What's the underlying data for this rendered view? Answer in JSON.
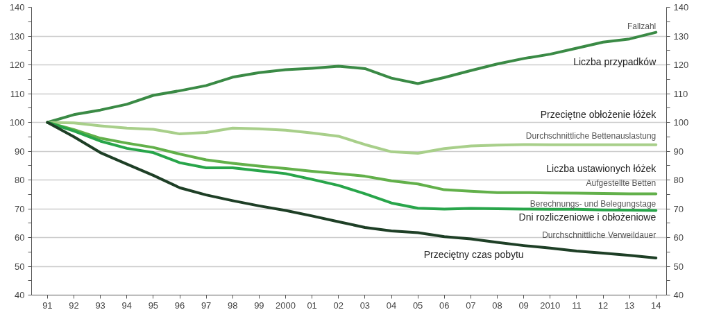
{
  "chart_data": {
    "type": "line",
    "categories": [
      "91",
      "92",
      "93",
      "94",
      "95",
      "96",
      "97",
      "98",
      "99",
      "2000",
      "01",
      "02",
      "03",
      "04",
      "05",
      "06",
      "07",
      "08",
      "09",
      "2010",
      "11",
      "12",
      "13",
      "14"
    ],
    "series": [
      {
        "name": "Fallzahl",
        "color": "#3a8a45",
        "values": [
          100,
          102.7,
          104.3,
          106.3,
          109.4,
          111,
          112.8,
          115.7,
          117.3,
          118.3,
          118.8,
          119.5,
          118.7,
          115.4,
          113.5,
          115.6,
          118,
          120.3,
          122.2,
          123.7,
          125.8,
          127.9,
          129,
          131.3
        ]
      },
      {
        "name": "Durchschnittliche Bettenauslastung",
        "color": "#a8cf8a",
        "values": [
          100,
          99.8,
          98.8,
          98,
          97.6,
          96,
          96.5,
          98,
          97.8,
          97.3,
          96.3,
          95.2,
          92.3,
          89.8,
          89.3,
          90.9,
          91.8,
          92.1,
          92.3,
          92.2,
          92.2,
          92.2,
          92.2,
          92.2
        ]
      },
      {
        "name": "Aufgestellte Betten",
        "color": "#62b04a",
        "values": [
          100,
          97.5,
          94.5,
          92.8,
          91.3,
          89,
          87,
          85.8,
          84.8,
          84,
          83,
          82.2,
          81.3,
          79.7,
          78.6,
          76.6,
          76.1,
          75.6,
          75.6,
          75.5,
          75.4,
          75.3,
          75.2,
          75.2
        ]
      },
      {
        "name": "Berechnungs- und Belegungstage",
        "color": "#28a54a",
        "values": [
          100,
          97,
          93.5,
          91,
          89.5,
          86,
          84.2,
          84.2,
          83.2,
          82.2,
          80.2,
          78.1,
          75.2,
          72,
          70.2,
          69.9,
          70.1,
          70,
          69.9,
          69.8,
          69.8,
          69.6,
          69.5,
          69.4
        ]
      },
      {
        "name": "Durchschnittliche Verweildauer",
        "color": "#1e3f26",
        "values": [
          100,
          95,
          89.5,
          85.5,
          81.6,
          77.3,
          74.8,
          72.8,
          71,
          69.4,
          67.5,
          65.5,
          63.5,
          62.3,
          61.7,
          60.3,
          59.5,
          58.3,
          57.2,
          56.3,
          55.3,
          54.6,
          53.8,
          52.9
        ]
      }
    ],
    "ylim": [
      40,
      140
    ],
    "yticks": [
      40,
      {
        "value": 45,
        "label": null
      },
      50,
      {
        "value": 55,
        "label": null
      },
      60,
      {
        "value": 65,
        "label": null
      },
      70,
      {
        "value": 75,
        "label": null
      },
      80,
      {
        "value": 85,
        "label": null
      },
      90,
      {
        "value": 95,
        "label": null
      },
      100,
      {
        "value": 105,
        "label": null
      },
      110,
      {
        "value": 115,
        "label": null
      },
      120,
      {
        "value": 125,
        "label": null
      },
      130,
      {
        "value": 135,
        "label": null
      },
      140
    ],
    "y2lim": [
      40,
      140
    ],
    "y2ticks": [
      40,
      {
        "value": 45,
        "label": null
      },
      50,
      {
        "value": 55,
        "label": null
      },
      60,
      {
        "value": 65,
        "label": null
      },
      70,
      {
        "value": 75,
        "label": null
      },
      80,
      {
        "value": 85,
        "label": null
      },
      90,
      {
        "value": 95,
        "label": null
      },
      100,
      {
        "value": 105,
        "label": null
      },
      110,
      {
        "value": 115,
        "label": null
      },
      120,
      {
        "value": 125,
        "label": null
      },
      130,
      {
        "value": 135,
        "label": null
      },
      140
    ],
    "grid": "y",
    "line_style": "solid",
    "annotations": [
      "Liczba przypadków",
      "Przeciętne obłożenie łóżek",
      "Liczba ustawionych łóżek",
      "Dni rozliczeniowe i obłożeniowe",
      "Przeciętny czas pobytu"
    ]
  }
}
